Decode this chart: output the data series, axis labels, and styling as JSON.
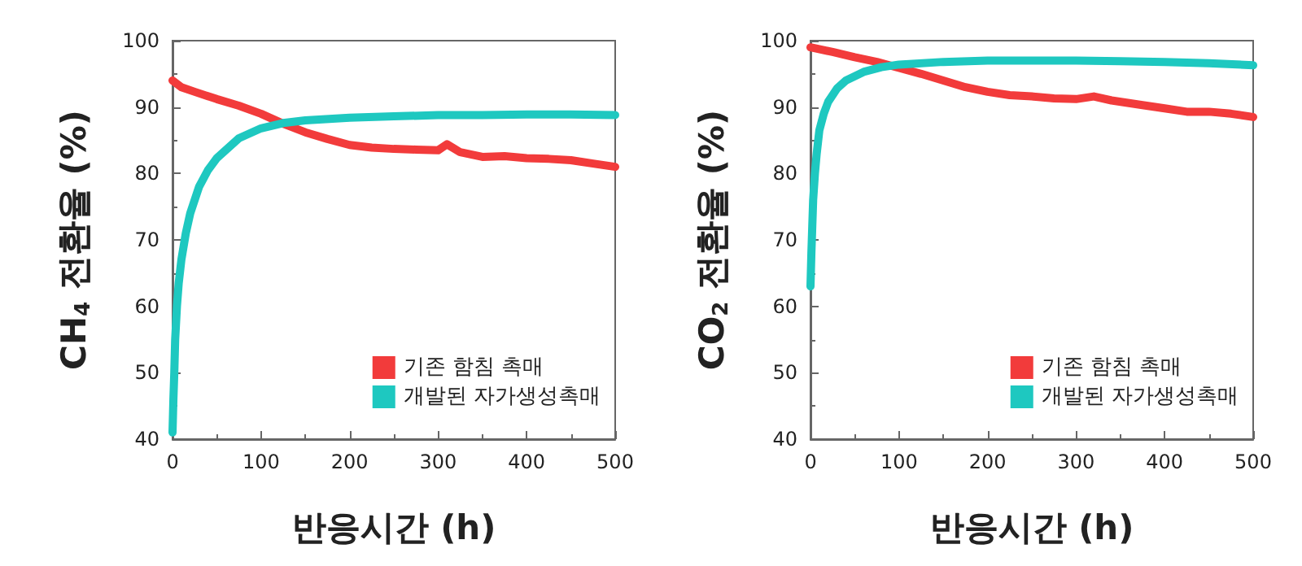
{
  "chart_data": [
    {
      "type": "line",
      "ylabel": "CH$_{4}$ 전환율 (%)",
      "xlabel": "반응시간 (h)",
      "xlim": [
        0,
        500
      ],
      "xticks": [
        0,
        100,
        200,
        300,
        400,
        500
      ],
      "ylim": [
        40,
        100
      ],
      "yticks": [
        40,
        50,
        60,
        70,
        80,
        90,
        100
      ],
      "grid": false,
      "legend": "bottom right",
      "marker": "none",
      "line_style": "solid",
      "series": [
        {
          "name": "기존 함침 촉매",
          "color": "#f23b3b",
          "x": [
            0,
            10,
            25,
            50,
            75,
            100,
            125,
            150,
            175,
            200,
            225,
            250,
            275,
            300,
            310,
            325,
            350,
            375,
            400,
            425,
            450,
            475,
            500
          ],
          "values": [
            94,
            93,
            92.3,
            91.2,
            90.2,
            89,
            87.5,
            86.2,
            85.2,
            84.3,
            83.9,
            83.7,
            83.6,
            83.5,
            84.4,
            83.2,
            82.5,
            82.6,
            82.3,
            82.2,
            82,
            81.5,
            81
          ]
        },
        {
          "name": "개발된 자가생성촉매",
          "color": "#1ec8c0",
          "x": [
            0,
            1,
            2,
            3,
            5,
            7,
            10,
            15,
            20,
            30,
            40,
            50,
            75,
            100,
            125,
            150,
            200,
            250,
            300,
            350,
            400,
            450,
            500
          ],
          "values": [
            41,
            46,
            50,
            55,
            60,
            63.5,
            67,
            71,
            74,
            78,
            80.5,
            82.3,
            85.3,
            86.8,
            87.6,
            88,
            88.4,
            88.6,
            88.8,
            88.8,
            88.9,
            88.9,
            88.8
          ]
        }
      ]
    },
    {
      "type": "line",
      "ylabel": "CO$_{2}$ 전환율 (%)",
      "xlabel": "반응시간 (h)",
      "xlim": [
        0,
        500
      ],
      "xticks": [
        0,
        100,
        200,
        300,
        400,
        500
      ],
      "ylim": [
        40,
        100
      ],
      "yticks": [
        40,
        50,
        60,
        70,
        80,
        90,
        100
      ],
      "grid": false,
      "legend": "bottom right",
      "marker": "none",
      "line_style": "solid",
      "series": [
        {
          "name": "기존 함침 촉매",
          "color": "#f23b3b",
          "x": [
            0,
            25,
            50,
            75,
            100,
            125,
            150,
            175,
            200,
            225,
            250,
            275,
            300,
            320,
            340,
            375,
            400,
            425,
            450,
            475,
            500
          ],
          "values": [
            99,
            98.3,
            97.5,
            96.8,
            95.9,
            95,
            94,
            93,
            92.3,
            91.8,
            91.6,
            91.3,
            91.2,
            91.6,
            91,
            90.3,
            89.8,
            89.3,
            89.3,
            89,
            88.5
          ]
        },
        {
          "name": "개발된 자가생성촉매",
          "color": "#1ec8c0",
          "x": [
            0,
            1,
            2,
            3,
            5,
            7,
            10,
            15,
            20,
            30,
            40,
            60,
            80,
            100,
            150,
            200,
            250,
            300,
            350,
            400,
            450,
            500
          ],
          "values": [
            63,
            68,
            72,
            76,
            80,
            83,
            86.5,
            89,
            90.8,
            92.8,
            94,
            95.3,
            96,
            96.4,
            96.8,
            97,
            97,
            97,
            96.9,
            96.8,
            96.6,
            96.3
          ]
        }
      ]
    }
  ]
}
